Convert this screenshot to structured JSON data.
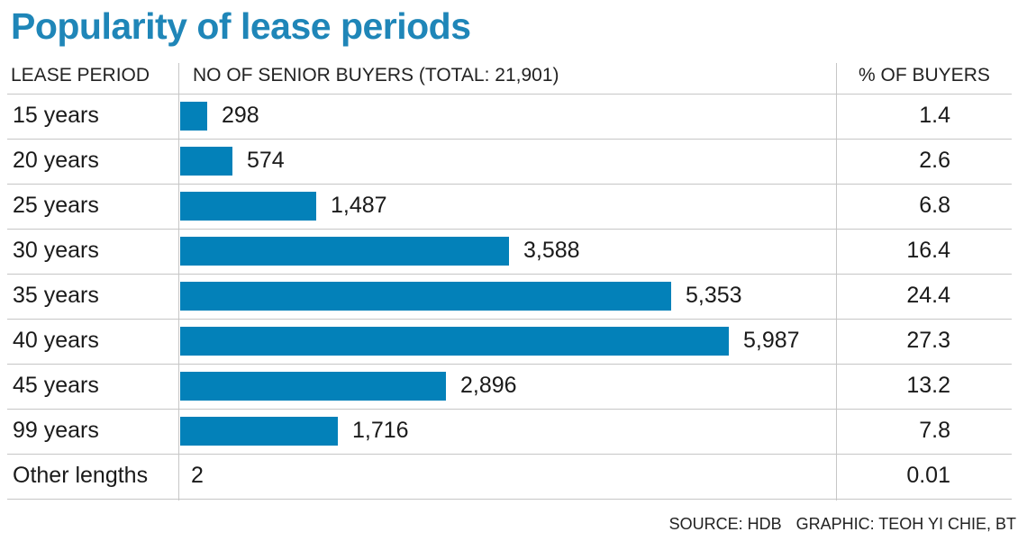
{
  "title": "Popularity of lease periods",
  "headers": {
    "lease": "LEASE PERIOD",
    "buyers": "NO OF SENIOR BUYERS (TOTAL: 21,901)",
    "pct": "% OF BUYERS"
  },
  "footer": {
    "source": "SOURCE: HDB",
    "graphic": "GRAPHIC: TEOH YI CHIE, BT"
  },
  "colors": {
    "title": "#1f86b8",
    "bar": "#0381b9",
    "grid": "#c6c6c6"
  },
  "chart_data": {
    "type": "bar",
    "orientation": "horizontal",
    "title": "Popularity of lease periods",
    "xlabel": "NO OF SENIOR BUYERS (TOTAL: 21,901)",
    "ylabel": "LEASE PERIOD",
    "categories": [
      "15 years",
      "20 years",
      "25 years",
      "30 years",
      "35 years",
      "40 years",
      "45 years",
      "99 years",
      "Other lengths"
    ],
    "values": [
      298,
      574,
      1487,
      3588,
      5353,
      5987,
      2896,
      1716,
      2
    ],
    "value_labels": [
      "298",
      "574",
      "1,487",
      "3,588",
      "5,353",
      "5,987",
      "2,896",
      "1,716",
      "2"
    ],
    "percent_labels": [
      "1.4",
      "2.6",
      "6.8",
      "16.4",
      "24.4",
      "27.3",
      "13.2",
      "7.8",
      "0.01"
    ],
    "xlim": [
      0,
      6000
    ]
  }
}
